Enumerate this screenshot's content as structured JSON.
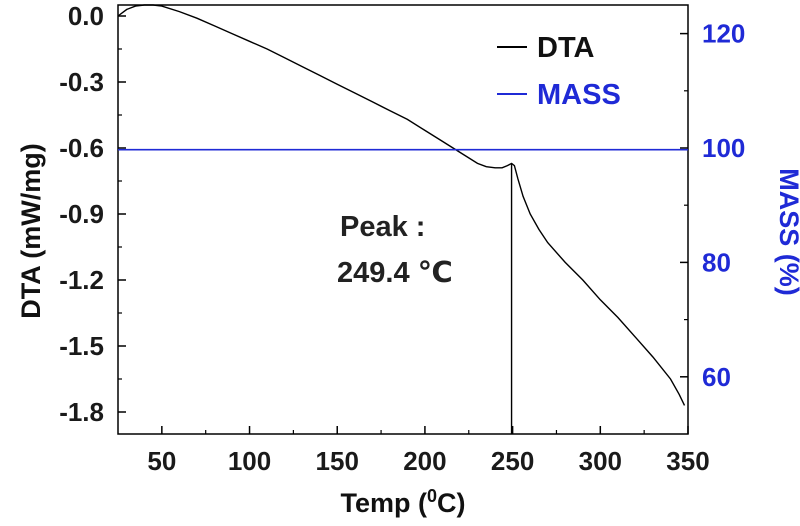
{
  "chart_data": {
    "type": "line",
    "x_axis": {
      "label_main": "Temp (",
      "label_sup": "0",
      "label_end": "C)",
      "range": [
        25,
        350
      ],
      "ticks": [
        "50",
        "100",
        "150",
        "200",
        "250",
        "300",
        "350"
      ],
      "tick_values": [
        50,
        100,
        150,
        200,
        250,
        300,
        350
      ]
    },
    "y_left": {
      "label": "DTA (mW/mg)",
      "range": [
        -1.9,
        0.05
      ],
      "ticks": [
        "0.0",
        "-0.3",
        "-0.6",
        "-0.9",
        "-1.2",
        "-1.5",
        "-1.8"
      ],
      "tick_values": [
        0.0,
        -0.3,
        -0.6,
        -0.9,
        -1.2,
        -1.5,
        -1.8
      ]
    },
    "y_right": {
      "label": "MASS (%)",
      "range": [
        50,
        125
      ],
      "ticks": [
        "120",
        "100",
        "80",
        "60"
      ],
      "tick_values": [
        120,
        100,
        80,
        60
      ],
      "color": "#1f2ad6"
    },
    "series": [
      {
        "name": "DTA",
        "color": "#000000",
        "axis": "left",
        "x": [
          25,
          30,
          35,
          40,
          45,
          50,
          60,
          70,
          80,
          90,
          100,
          110,
          120,
          130,
          140,
          150,
          160,
          170,
          180,
          190,
          200,
          210,
          220,
          230,
          235,
          240,
          244,
          247,
          249.4,
          251,
          253,
          256,
          260,
          265,
          270,
          280,
          290,
          300,
          310,
          320,
          330,
          340,
          345,
          348
        ],
        "y": [
          0.0,
          0.03,
          0.045,
          0.05,
          0.05,
          0.045,
          0.02,
          -0.01,
          -0.045,
          -0.08,
          -0.115,
          -0.15,
          -0.19,
          -0.23,
          -0.27,
          -0.31,
          -0.35,
          -0.39,
          -0.43,
          -0.47,
          -0.52,
          -0.57,
          -0.62,
          -0.67,
          -0.685,
          -0.69,
          -0.69,
          -0.68,
          -0.67,
          -0.68,
          -0.74,
          -0.82,
          -0.9,
          -0.97,
          -1.03,
          -1.12,
          -1.2,
          -1.29,
          -1.37,
          -1.46,
          -1.55,
          -1.65,
          -1.72,
          -1.77
        ]
      },
      {
        "name": "MASS",
        "color": "#1f2ad6",
        "axis": "right",
        "x": [
          25,
          350
        ],
        "y": [
          99.7,
          99.7
        ]
      }
    ],
    "peak": {
      "x": 249.4,
      "y": -0.67
    },
    "annotation_lines": [
      "Peak :",
      "249.4 ℃"
    ],
    "legend": {
      "position": "top-right",
      "entries": [
        "DTA",
        "MASS"
      ]
    },
    "grid": false
  }
}
